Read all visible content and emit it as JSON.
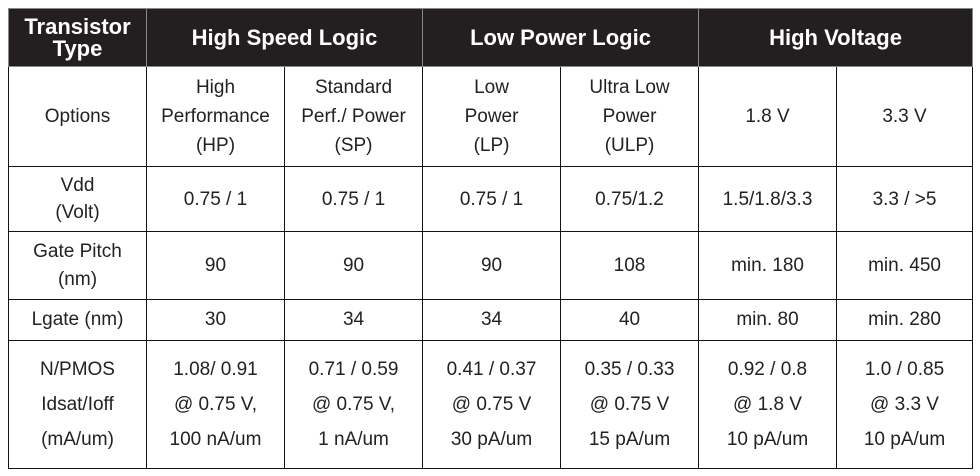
{
  "header": {
    "first": "Transistor\nType",
    "groups": [
      "High Speed Logic",
      "Low Power Logic",
      "High Voltage"
    ]
  },
  "table": {
    "rows": [
      [
        "Options",
        "High\nPerformance\n(HP)",
        "Standard\nPerf./ Power\n(SP)",
        "Low\nPower\n(LP)",
        "Ultra Low\nPower\n(ULP)",
        "1.8 V",
        "3.3 V"
      ],
      [
        "Vdd\n(Volt)",
        "0.75 / 1",
        "0.75 / 1",
        "0.75 / 1",
        "0.75/1.2",
        "1.5/1.8/3.3",
        "3.3 / >5"
      ],
      [
        "Gate Pitch\n(nm)",
        "90",
        "90",
        "90",
        "108",
        "min. 180",
        "min. 450"
      ],
      [
        "Lgate (nm)",
        "30",
        "34",
        "34",
        "40",
        "min. 80",
        "min. 280"
      ],
      [
        "N/PMOS\nIdsat/Ioff\n(mA/um)",
        "1.08/ 0.91\n@ 0.75 V,\n100 nA/um",
        "0.71 / 0.59\n@ 0.75 V,\n1 nA/um",
        "0.41 / 0.37\n@ 0.75 V\n30 pA/um",
        "0.35 / 0.33\n@ 0.75 V\n15 pA/um",
        "0.92 / 0.8\n@ 1.8 V\n10 pA/um",
        "1.0 / 0.85\n@ 3.3 V\n10 pA/um"
      ]
    ]
  }
}
